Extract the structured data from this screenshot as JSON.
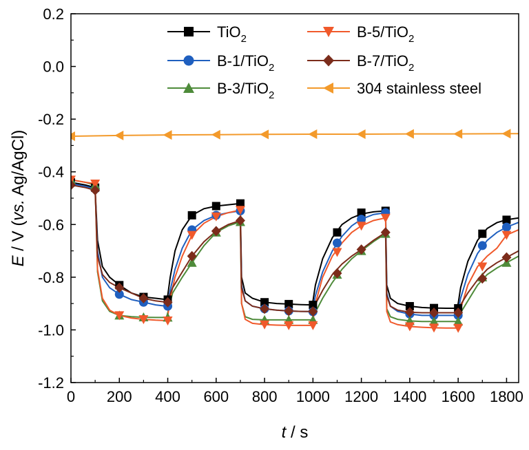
{
  "chart_data": {
    "type": "line",
    "xlabel": {
      "symbol": "t",
      "rest": " / s"
    },
    "ylabel": {
      "symbol": "E",
      "mid": " / V (",
      "italic": "vs.",
      "rest": " Ag/AgCl)"
    },
    "xlim": [
      0,
      1850
    ],
    "ylim": [
      -1.2,
      0.2
    ],
    "xticks": [
      0,
      200,
      400,
      600,
      800,
      1000,
      1200,
      1400,
      1600,
      1800
    ],
    "yticks": [
      0.2,
      0.0,
      -0.2,
      -0.4,
      -0.6,
      -0.8,
      -1.0,
      -1.2
    ],
    "ytick_labels": [
      "0.2",
      "0.0",
      "-0.2",
      "-0.4",
      "-0.6",
      "-0.8",
      "-1.0",
      "-1.2"
    ],
    "grid": false,
    "legend_position": "top-right, two columns",
    "series": [
      {
        "name": "TiO2",
        "label_base": "TiO",
        "label_sub": "2",
        "color": "#000000",
        "marker": "square",
        "x": [
          0,
          60,
          100,
          110,
          130,
          160,
          200,
          250,
          300,
          350,
          395,
          400,
          410,
          430,
          460,
          500,
          550,
          600,
          650,
          700,
          705,
          720,
          750,
          800,
          850,
          900,
          950,
          995,
          1000,
          1010,
          1040,
          1080,
          1120,
          1160,
          1200,
          1250,
          1300,
          1305,
          1320,
          1350,
          1400,
          1450,
          1500,
          1550,
          1595,
          1600,
          1610,
          1640,
          1680,
          1720,
          1760,
          1800,
          1850
        ],
        "y": [
          -0.44,
          -0.45,
          -0.46,
          -0.66,
          -0.76,
          -0.8,
          -0.83,
          -0.86,
          -0.875,
          -0.88,
          -0.885,
          -0.87,
          -0.8,
          -0.7,
          -0.62,
          -0.565,
          -0.54,
          -0.53,
          -0.525,
          -0.52,
          -0.8,
          -0.86,
          -0.88,
          -0.895,
          -0.9,
          -0.902,
          -0.904,
          -0.905,
          -0.89,
          -0.83,
          -0.73,
          -0.65,
          -0.6,
          -0.575,
          -0.56,
          -0.552,
          -0.548,
          -0.83,
          -0.88,
          -0.9,
          -0.91,
          -0.915,
          -0.917,
          -0.918,
          -0.918,
          -0.9,
          -0.84,
          -0.74,
          -0.66,
          -0.615,
          -0.593,
          -0.582,
          -0.575
        ],
        "markers_x": [
          0,
          100,
          200,
          300,
          400,
          500,
          600,
          700,
          800,
          900,
          1000,
          1100,
          1200,
          1300,
          1400,
          1500,
          1600,
          1700,
          1800
        ],
        "markers_y": [
          -0.44,
          -0.46,
          -0.83,
          -0.875,
          -0.885,
          -0.565,
          -0.53,
          -0.52,
          -0.895,
          -0.902,
          -0.905,
          -0.63,
          -0.555,
          -0.548,
          -0.91,
          -0.917,
          -0.918,
          -0.635,
          -0.582
        ]
      },
      {
        "name": "B-1/TiO2",
        "label_base": "B-1/TiO",
        "label_sub": "2",
        "color": "#1f5fbf",
        "marker": "circle",
        "x": [
          0,
          60,
          100,
          110,
          130,
          160,
          200,
          250,
          300,
          350,
          395,
          400,
          410,
          430,
          460,
          500,
          550,
          600,
          650,
          700,
          705,
          720,
          750,
          800,
          850,
          900,
          950,
          995,
          1000,
          1010,
          1040,
          1080,
          1120,
          1160,
          1200,
          1250,
          1300,
          1305,
          1320,
          1350,
          1400,
          1450,
          1500,
          1550,
          1595,
          1600,
          1610,
          1640,
          1680,
          1720,
          1760,
          1800,
          1850
        ],
        "y": [
          -0.445,
          -0.455,
          -0.465,
          -0.7,
          -0.8,
          -0.84,
          -0.865,
          -0.885,
          -0.895,
          -0.905,
          -0.91,
          -0.9,
          -0.85,
          -0.77,
          -0.69,
          -0.62,
          -0.585,
          -0.565,
          -0.555,
          -0.548,
          -0.83,
          -0.89,
          -0.91,
          -0.92,
          -0.925,
          -0.928,
          -0.93,
          -0.931,
          -0.92,
          -0.87,
          -0.78,
          -0.7,
          -0.645,
          -0.605,
          -0.58,
          -0.562,
          -0.555,
          -0.86,
          -0.91,
          -0.93,
          -0.94,
          -0.945,
          -0.945,
          -0.945,
          -0.945,
          -0.93,
          -0.88,
          -0.79,
          -0.71,
          -0.66,
          -0.63,
          -0.61,
          -0.592
        ],
        "markers_x": [
          0,
          100,
          200,
          300,
          400,
          500,
          600,
          700,
          800,
          900,
          1000,
          1100,
          1200,
          1300,
          1400,
          1500,
          1600,
          1700,
          1800
        ],
        "markers_y": [
          -0.445,
          -0.465,
          -0.865,
          -0.895,
          -0.91,
          -0.62,
          -0.565,
          -0.548,
          -0.92,
          -0.928,
          -0.931,
          -0.67,
          -0.58,
          -0.555,
          -0.94,
          -0.945,
          -0.945,
          -0.68,
          -0.61
        ]
      },
      {
        "name": "B-3/TiO2",
        "label_base": "B-3/TiO",
        "label_sub": "2",
        "color": "#4e8b3a",
        "marker": "triangle-up",
        "x": [
          0,
          60,
          100,
          110,
          130,
          160,
          200,
          250,
          300,
          350,
          395,
          400,
          420,
          460,
          500,
          550,
          600,
          650,
          700,
          705,
          720,
          750,
          800,
          850,
          900,
          950,
          995,
          1000,
          1040,
          1080,
          1120,
          1160,
          1200,
          1250,
          1300,
          1305,
          1320,
          1350,
          1400,
          1450,
          1500,
          1550,
          1595,
          1600,
          1640,
          1680,
          1720,
          1760,
          1800,
          1850
        ],
        "y": [
          -0.43,
          -0.44,
          -0.45,
          -0.78,
          -0.89,
          -0.93,
          -0.945,
          -0.95,
          -0.952,
          -0.953,
          -0.953,
          -0.935,
          -0.86,
          -0.8,
          -0.745,
          -0.68,
          -0.63,
          -0.605,
          -0.59,
          -0.9,
          -0.95,
          -0.96,
          -0.962,
          -0.962,
          -0.962,
          -0.962,
          -0.962,
          -0.95,
          -0.88,
          -0.82,
          -0.77,
          -0.73,
          -0.7,
          -0.665,
          -0.635,
          -0.92,
          -0.95,
          -0.96,
          -0.966,
          -0.968,
          -0.968,
          -0.968,
          -0.968,
          -0.95,
          -0.89,
          -0.83,
          -0.79,
          -0.765,
          -0.745,
          -0.72
        ],
        "markers_x": [
          0,
          100,
          200,
          300,
          400,
          500,
          600,
          700,
          800,
          900,
          1000,
          1100,
          1200,
          1300,
          1400,
          1500,
          1600,
          1700,
          1800
        ],
        "markers_y": [
          -0.43,
          -0.45,
          -0.945,
          -0.952,
          -0.953,
          -0.745,
          -0.63,
          -0.59,
          -0.962,
          -0.962,
          -0.962,
          -0.79,
          -0.7,
          -0.635,
          -0.966,
          -0.968,
          -0.968,
          -0.8,
          -0.745
        ]
      },
      {
        "name": "B-5/TiO2",
        "label_base": "B-5/TiO",
        "label_sub": "2",
        "color": "#f0592b",
        "marker": "triangle-down",
        "x": [
          0,
          60,
          100,
          110,
          130,
          160,
          200,
          250,
          300,
          350,
          395,
          400,
          410,
          430,
          460,
          500,
          550,
          600,
          650,
          700,
          705,
          720,
          750,
          800,
          850,
          900,
          950,
          995,
          1000,
          1010,
          1040,
          1080,
          1120,
          1160,
          1200,
          1250,
          1300,
          1305,
          1320,
          1350,
          1400,
          1450,
          1500,
          1550,
          1595,
          1600,
          1610,
          1640,
          1680,
          1720,
          1760,
          1800,
          1850
        ],
        "y": [
          -0.43,
          -0.44,
          -0.445,
          -0.77,
          -0.88,
          -0.925,
          -0.945,
          -0.955,
          -0.96,
          -0.963,
          -0.965,
          -0.95,
          -0.88,
          -0.8,
          -0.72,
          -0.64,
          -0.595,
          -0.57,
          -0.555,
          -0.545,
          -0.9,
          -0.96,
          -0.975,
          -0.98,
          -0.982,
          -0.983,
          -0.983,
          -0.983,
          -0.97,
          -0.9,
          -0.8,
          -0.72,
          -0.67,
          -0.63,
          -0.605,
          -0.585,
          -0.575,
          -0.93,
          -0.97,
          -0.98,
          -0.987,
          -0.99,
          -0.992,
          -0.993,
          -0.993,
          -0.98,
          -0.92,
          -0.83,
          -0.76,
          -0.72,
          -0.69,
          -0.64,
          -0.62
        ],
        "markers_x": [
          0,
          100,
          200,
          300,
          400,
          500,
          600,
          700,
          800,
          900,
          1000,
          1100,
          1200,
          1300,
          1400,
          1500,
          1600,
          1700,
          1800
        ],
        "markers_y": [
          -0.43,
          -0.445,
          -0.945,
          -0.96,
          -0.965,
          -0.64,
          -0.57,
          -0.545,
          -0.98,
          -0.983,
          -0.983,
          -0.705,
          -0.605,
          -0.575,
          -0.987,
          -0.992,
          -0.993,
          -0.76,
          -0.64
        ]
      },
      {
        "name": "B-7/TiO2",
        "label_base": "B-7/TiO",
        "label_sub": "2",
        "color": "#7b2c1b",
        "marker": "diamond",
        "x": [
          0,
          60,
          100,
          110,
          130,
          160,
          200,
          250,
          300,
          350,
          395,
          400,
          420,
          460,
          500,
          550,
          600,
          650,
          700,
          705,
          720,
          750,
          800,
          850,
          900,
          950,
          995,
          1000,
          1040,
          1080,
          1120,
          1160,
          1200,
          1250,
          1300,
          1305,
          1320,
          1350,
          1400,
          1450,
          1500,
          1550,
          1595,
          1600,
          1640,
          1680,
          1720,
          1760,
          1800,
          1850
        ],
        "y": [
          -0.45,
          -0.46,
          -0.47,
          -0.72,
          -0.79,
          -0.82,
          -0.84,
          -0.86,
          -0.88,
          -0.89,
          -0.895,
          -0.89,
          -0.84,
          -0.78,
          -0.72,
          -0.665,
          -0.625,
          -0.6,
          -0.585,
          -0.84,
          -0.89,
          -0.91,
          -0.92,
          -0.925,
          -0.928,
          -0.93,
          -0.93,
          -0.92,
          -0.85,
          -0.79,
          -0.75,
          -0.72,
          -0.695,
          -0.66,
          -0.63,
          -0.87,
          -0.91,
          -0.925,
          -0.933,
          -0.935,
          -0.935,
          -0.935,
          -0.935,
          -0.92,
          -0.86,
          -0.81,
          -0.77,
          -0.745,
          -0.725,
          -0.7
        ],
        "markers_x": [
          0,
          100,
          200,
          300,
          400,
          500,
          600,
          700,
          800,
          900,
          1000,
          1100,
          1200,
          1300,
          1400,
          1500,
          1600,
          1700,
          1800
        ],
        "markers_y": [
          -0.45,
          -0.47,
          -0.84,
          -0.88,
          -0.895,
          -0.72,
          -0.625,
          -0.585,
          -0.92,
          -0.928,
          -0.93,
          -0.785,
          -0.695,
          -0.63,
          -0.933,
          -0.935,
          -0.935,
          -0.805,
          -0.725
        ]
      },
      {
        "name": "304 stainless steel",
        "label_base": "304 stainless steel",
        "label_sub": "",
        "color": "#f39a2b",
        "marker": "triangle-left",
        "x": [
          0,
          200,
          400,
          600,
          800,
          1000,
          1200,
          1400,
          1600,
          1800,
          1850
        ],
        "y": [
          -0.265,
          -0.262,
          -0.26,
          -0.259,
          -0.258,
          -0.257,
          -0.257,
          -0.256,
          -0.256,
          -0.255,
          -0.255
        ],
        "markers_x": [
          0,
          200,
          400,
          600,
          800,
          1000,
          1200,
          1400,
          1600,
          1800
        ],
        "markers_y": [
          -0.265,
          -0.262,
          -0.26,
          -0.259,
          -0.258,
          -0.257,
          -0.257,
          -0.256,
          -0.256,
          -0.255
        ]
      }
    ],
    "legend_order": [
      0,
      3,
      1,
      4,
      2,
      5
    ]
  }
}
